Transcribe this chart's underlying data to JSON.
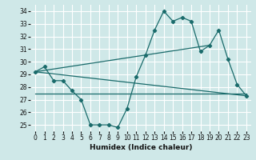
{
  "xlabel": "Humidex (Indice chaleur)",
  "bg_color": "#cfe8e8",
  "grid_color": "#ffffff",
  "line_color": "#1a6b6b",
  "xlim": [
    -0.5,
    23.5
  ],
  "ylim": [
    24.5,
    34.5
  ],
  "yticks": [
    25,
    26,
    27,
    28,
    29,
    30,
    31,
    32,
    33,
    34
  ],
  "xticks": [
    0,
    1,
    2,
    3,
    4,
    5,
    6,
    7,
    8,
    9,
    10,
    11,
    12,
    13,
    14,
    15,
    16,
    17,
    18,
    19,
    20,
    21,
    22,
    23
  ],
  "series_main": {
    "x": [
      0,
      1,
      2,
      3,
      4,
      5,
      6,
      7,
      8,
      9,
      10,
      11,
      12,
      13,
      14,
      15,
      16,
      17,
      18,
      19,
      20,
      21,
      22,
      23
    ],
    "y": [
      29.2,
      29.6,
      28.5,
      28.5,
      27.7,
      27.0,
      25.0,
      25.0,
      25.0,
      24.8,
      26.3,
      28.8,
      30.5,
      32.5,
      34.0,
      33.2,
      33.5,
      33.2,
      30.8,
      31.3,
      32.5,
      30.2,
      28.2,
      27.3
    ]
  },
  "line_diag": {
    "x": [
      0,
      23
    ],
    "y": [
      29.2,
      27.3
    ]
  },
  "line_flat": {
    "x": [
      0,
      23
    ],
    "y": [
      27.5,
      27.5
    ]
  },
  "line_rise": {
    "x": [
      0,
      19
    ],
    "y": [
      29.2,
      31.3
    ]
  }
}
